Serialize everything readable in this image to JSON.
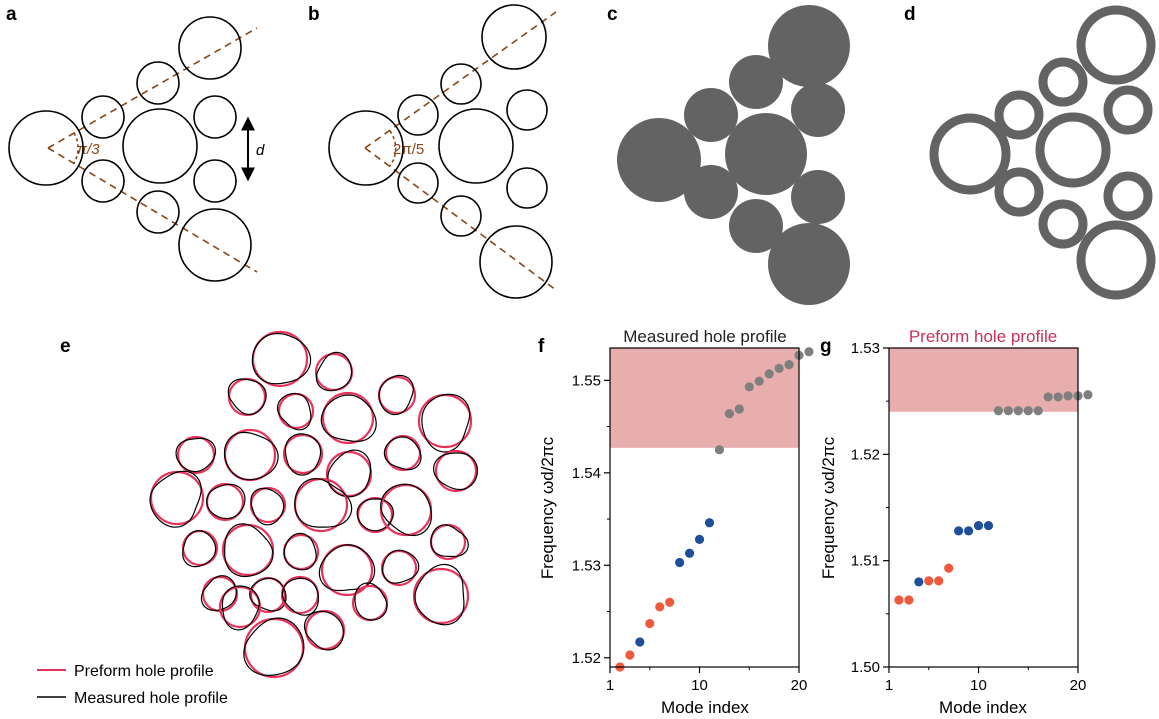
{
  "panel_labels": {
    "a": "a",
    "b": "b",
    "c": "c",
    "d": "d",
    "e": "e",
    "f": "f",
    "g": "g"
  },
  "annotations": {
    "angle_a": "π/3",
    "angle_b": "2π/5",
    "distance": "d"
  },
  "colors": {
    "dashed": "#8B4513",
    "solid_fill": "#636363",
    "preform": "#E8325A",
    "measured": "#000000",
    "band": "#E8AEAE",
    "red_dots": "#F05A3C",
    "blue_dots": "#1F4E9A",
    "gray_dots": "#7F7F7F"
  },
  "legend": {
    "preform": "Preform hole profile",
    "measured": "Measured hole profile"
  },
  "chart_data": [
    {
      "type": "scatter",
      "title": "Measured hole profile",
      "xlabel": "Mode index",
      "ylabel": "Frequency  ωd/2πc",
      "x_ticks": [
        1,
        10,
        20
      ],
      "y_ticks": [
        1.52,
        1.53,
        1.54,
        1.55
      ],
      "xlim": [
        1,
        20
      ],
      "ylim": [
        1.519,
        1.5535
      ],
      "shaded_band": [
        1.5427,
        1.5535
      ],
      "series": [
        {
          "color": "red",
          "x": [
            2,
            3,
            5,
            6,
            7
          ],
          "y": [
            1.519,
            1.5203,
            1.5237,
            1.5255,
            1.526
          ]
        },
        {
          "color": "blue",
          "x": [
            4,
            8,
            9,
            10,
            11
          ],
          "y": [
            1.5217,
            1.5303,
            1.5313,
            1.5328,
            1.5346
          ]
        },
        {
          "color": "gray",
          "x": [
            12,
            13,
            14,
            15,
            16,
            17,
            18,
            19,
            20,
            21
          ],
          "y": [
            1.5425,
            1.5464,
            1.5469,
            1.5493,
            1.5499,
            1.5507,
            1.5513,
            1.5517,
            1.5527,
            1.5531
          ]
        }
      ]
    },
    {
      "type": "scatter",
      "title": "Preform hole profile",
      "xlabel": "Mode index",
      "ylabel": "Frequency  ωd/2πc",
      "x_ticks": [
        1,
        10,
        20
      ],
      "y_ticks": [
        1.5,
        1.51,
        1.52,
        1.53
      ],
      "xlim": [
        1,
        20
      ],
      "ylim": [
        1.5,
        1.53
      ],
      "shaded_band": [
        1.524,
        1.53
      ],
      "series": [
        {
          "color": "red",
          "x": [
            2,
            3,
            5,
            6,
            7
          ],
          "y": [
            1.5063,
            1.5063,
            1.5081,
            1.5081,
            1.5093
          ]
        },
        {
          "color": "blue",
          "x": [
            4,
            8,
            9,
            10,
            11
          ],
          "y": [
            1.508,
            1.5128,
            1.5128,
            1.5133,
            1.5133
          ]
        },
        {
          "color": "gray",
          "x": [
            12,
            13,
            14,
            15,
            16,
            17,
            18,
            19,
            20,
            21
          ],
          "y": [
            1.5241,
            1.5241,
            1.5241,
            1.5241,
            1.5241,
            1.5254,
            1.5254,
            1.5255,
            1.5255,
            1.5256
          ]
        }
      ]
    }
  ]
}
